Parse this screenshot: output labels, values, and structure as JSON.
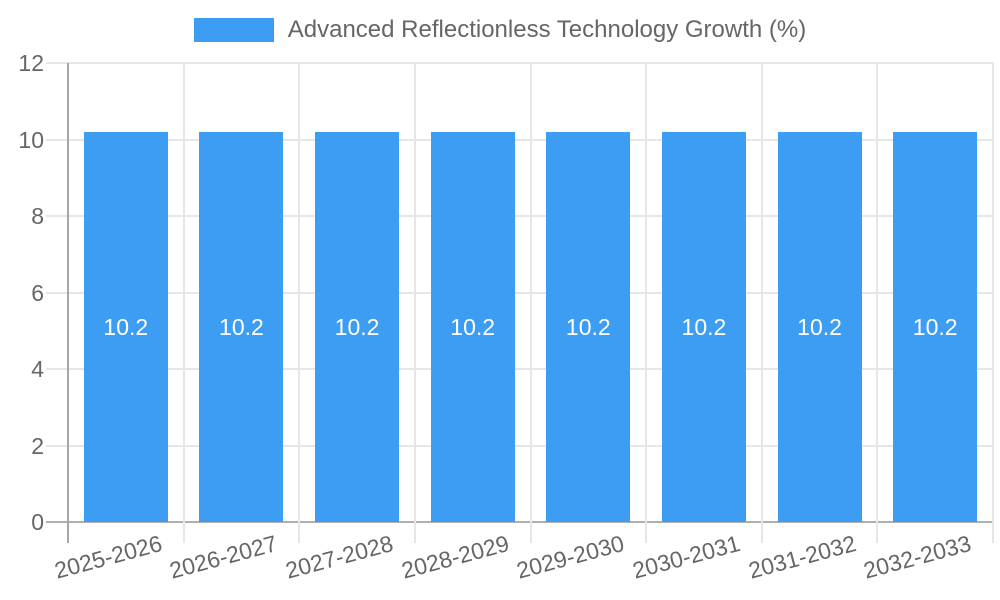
{
  "chart_data": {
    "type": "bar",
    "title": "",
    "legend": "Advanced Reflectionless Technology Growth (%)",
    "legend_position": "top-center",
    "categories": [
      "2025-2026",
      "2026-2027",
      "2027-2028",
      "2028-2029",
      "2029-2030",
      "2030-2031",
      "2031-2032",
      "2032-2033"
    ],
    "values": [
      10.2,
      10.2,
      10.2,
      10.2,
      10.2,
      10.2,
      10.2,
      10.2
    ],
    "value_labels": [
      "10.2",
      "10.2",
      "10.2",
      "10.2",
      "10.2",
      "10.2",
      "10.2",
      "10.2"
    ],
    "xlabel": "",
    "ylabel": "",
    "ylim": [
      0,
      12
    ],
    "yticks": [
      0,
      2,
      4,
      6,
      8,
      10,
      12
    ],
    "grid": true,
    "x_label_rotation_deg": -15,
    "colors": {
      "bar": "#3D9DF3",
      "grid": "#E6E6E6",
      "axis": "#A6A6A6",
      "baseline": "#B0B0B0",
      "text": "#666666",
      "value_label": "#FFFFFF",
      "background": "#FFFFFF"
    }
  }
}
